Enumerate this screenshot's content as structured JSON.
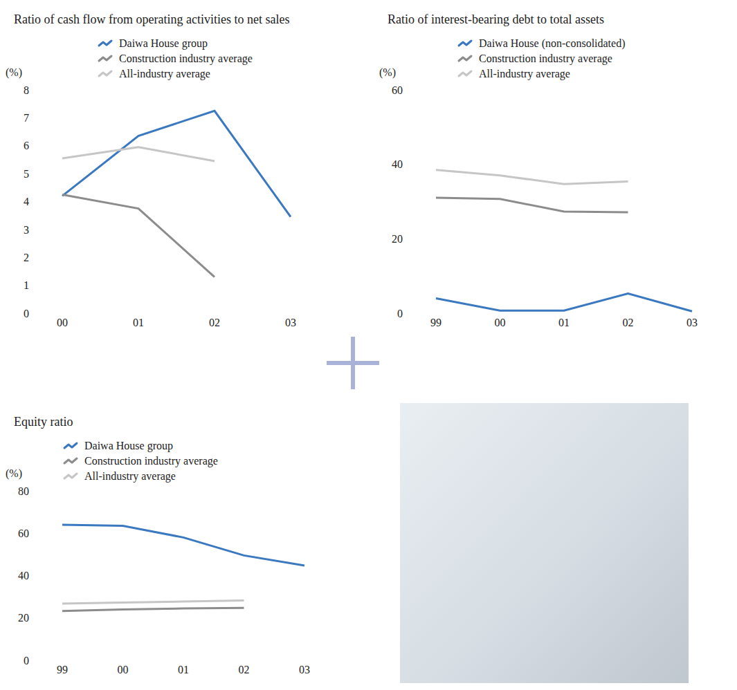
{
  "chart_data": [
    {
      "type": "line",
      "title": "Ratio of cash flow from operating activities to net sales",
      "ylabel": "(%)",
      "categories": [
        "00",
        "01",
        "02",
        "03"
      ],
      "series": [
        {
          "name": "Daiwa House group",
          "color": "#3a78c0",
          "values": [
            4.2,
            6.35,
            7.25,
            3.45
          ]
        },
        {
          "name": "Construction industry average",
          "color": "#8c8c8c",
          "values": [
            4.25,
            3.75,
            1.3,
            null
          ]
        },
        {
          "name": "All-industry average",
          "color": "#c6c6c6",
          "values": [
            5.55,
            5.95,
            5.45,
            null
          ]
        }
      ],
      "ylim": [
        0,
        8
      ],
      "yticks": [
        0,
        1,
        2,
        3,
        4,
        5,
        6,
        7,
        8
      ],
      "grid": false,
      "legend": "top"
    },
    {
      "type": "line",
      "title": "Ratio of interest-bearing debt to total assets",
      "ylabel": "(%)",
      "categories": [
        "99",
        "00",
        "01",
        "02",
        "03"
      ],
      "series": [
        {
          "name": "Daiwa House (non-consolidated)",
          "color": "#3a78c0",
          "values": [
            4.0,
            0.7,
            0.7,
            5.3,
            0.5
          ]
        },
        {
          "name": "Construction industry average",
          "color": "#8c8c8c",
          "values": [
            31.0,
            30.7,
            27.3,
            27.1,
            null
          ]
        },
        {
          "name": "All-industry average",
          "color": "#c6c6c6",
          "values": [
            38.5,
            37.0,
            34.7,
            35.4,
            null
          ]
        }
      ],
      "ylim": [
        0,
        60
      ],
      "yticks": [
        0,
        20,
        40,
        60
      ],
      "grid": false,
      "legend": "top"
    },
    {
      "type": "line",
      "title": "Equity ratio",
      "ylabel": "(%)",
      "categories": [
        "99",
        "00",
        "01",
        "02",
        "03"
      ],
      "series": [
        {
          "name": "Daiwa House group",
          "color": "#3a78c0",
          "values": [
            64.0,
            63.5,
            58.0,
            49.5,
            44.75
          ]
        },
        {
          "name": "Construction industry average",
          "color": "#8c8c8c",
          "values": [
            23.25,
            24.0,
            24.5,
            24.75,
            null
          ]
        },
        {
          "name": "All-industry average",
          "color": "#c6c6c6",
          "values": [
            26.75,
            27.25,
            27.75,
            28.25,
            null
          ]
        }
      ],
      "ylim": [
        0,
        80
      ],
      "yticks": [
        0,
        20,
        40,
        60,
        80
      ],
      "grid": false,
      "legend": "top"
    }
  ]
}
